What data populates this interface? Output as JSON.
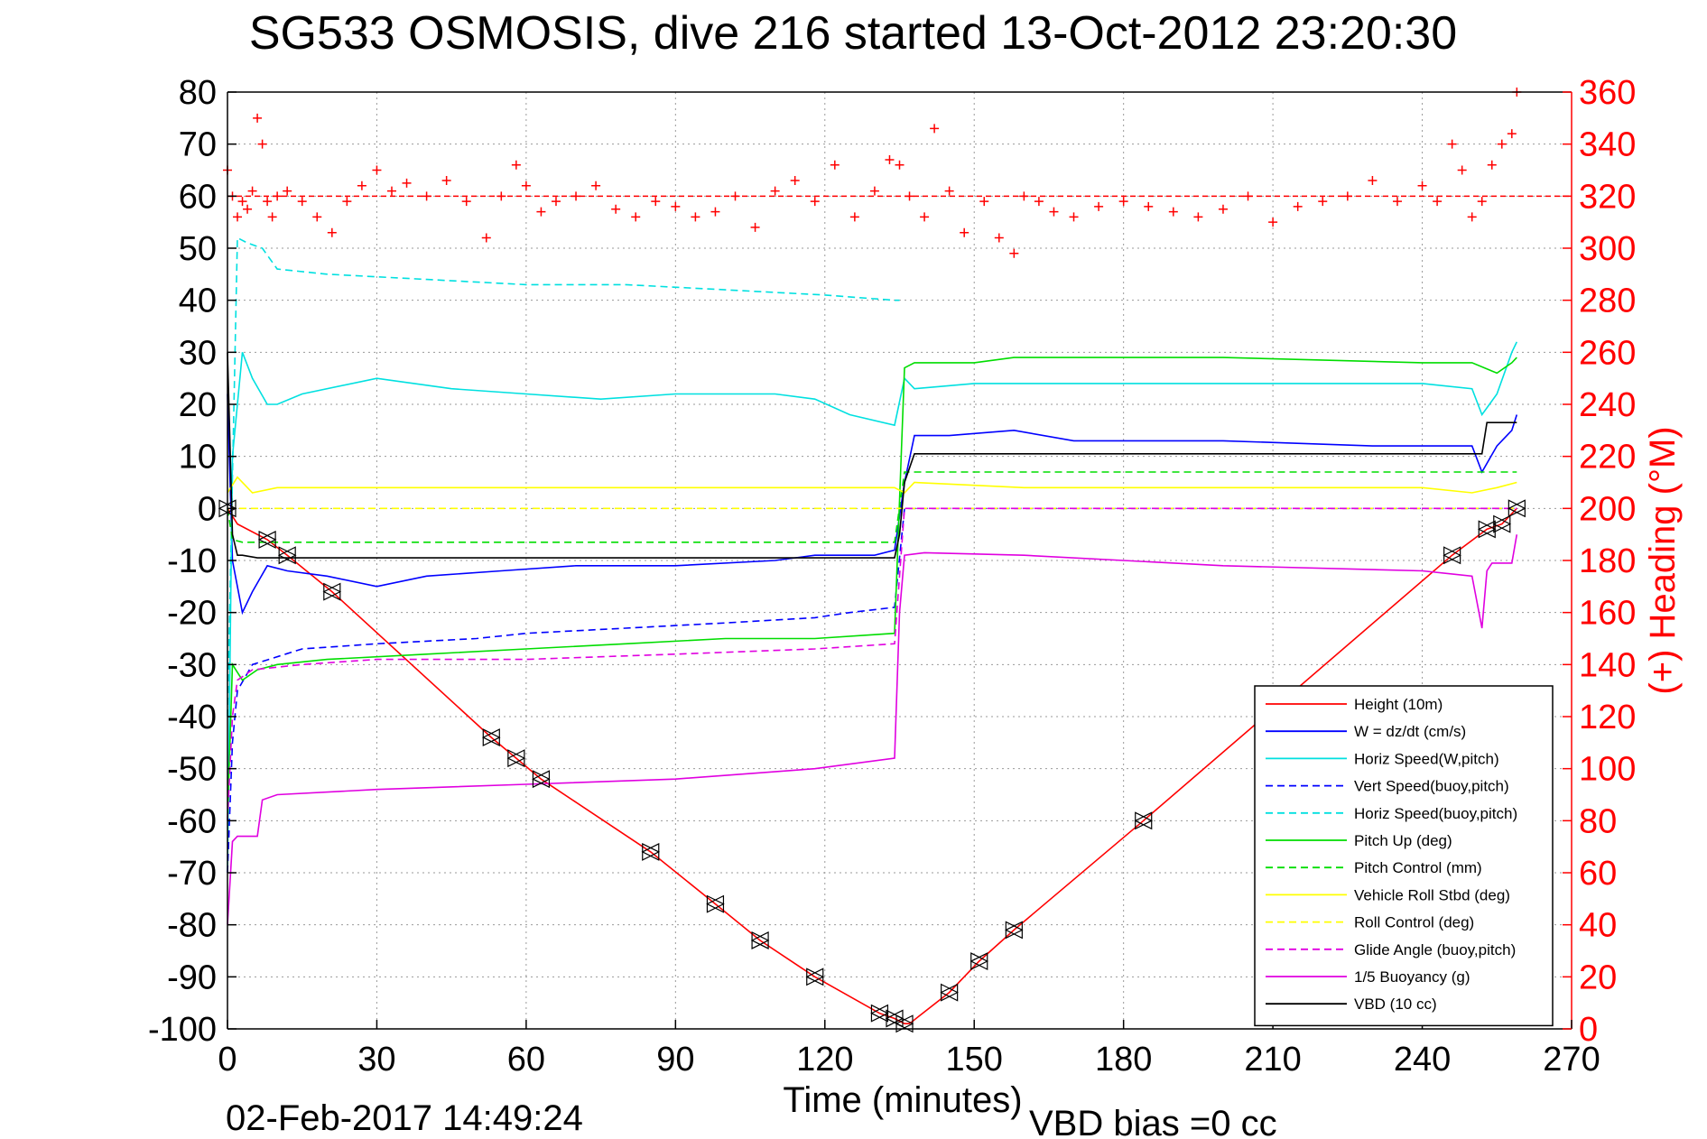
{
  "chart_data": {
    "type": "line",
    "title": "SG533 OSMOSIS, dive 216 started 13-Oct-2012 23:20:30",
    "xlabel": "Time (minutes)",
    "ylabel": "",
    "ylabel_right": "(+) Heading (°M)",
    "xlim": [
      0,
      270
    ],
    "ylim": [
      -100,
      80
    ],
    "ylim_right": [
      0,
      360
    ],
    "xticks": [
      0,
      30,
      60,
      90,
      120,
      150,
      180,
      210,
      240,
      270
    ],
    "yticks": [
      -100,
      -90,
      -80,
      -70,
      -60,
      -50,
      -40,
      -30,
      -20,
      -10,
      0,
      10,
      20,
      30,
      40,
      50,
      60,
      70,
      80
    ],
    "yticks_right": [
      0,
      20,
      40,
      60,
      80,
      100,
      120,
      140,
      160,
      180,
      200,
      220,
      240,
      260,
      280,
      300,
      320,
      340,
      360
    ],
    "grid": true,
    "legend_position": "bottom-right",
    "footer_date": "02-Feb-2017 14:49:24",
    "footer_note": "VBD bias =0 cc",
    "series": [
      {
        "name": "Height (10m)",
        "color": "#ff0000",
        "dash": "solid",
        "x": [
          0,
          2,
          8,
          12,
          21,
          53,
          58,
          63,
          85,
          98,
          107,
          118,
          131,
          134,
          136,
          137,
          145,
          151,
          158,
          184,
          246,
          253,
          256,
          259
        ],
        "y": [
          0,
          -3,
          -6,
          -9,
          -16,
          -44,
          -48,
          -52,
          -66,
          -76,
          -83,
          -90,
          -97,
          -98,
          -99,
          -99,
          -93,
          -87,
          -81,
          -60,
          -9,
          -4,
          -3,
          0
        ]
      },
      {
        "name": "W = dz/dt (cm/s)",
        "color": "#0000ff",
        "dash": "solid",
        "x": [
          0,
          1,
          3,
          5,
          8,
          12,
          20,
          30,
          40,
          55,
          70,
          90,
          110,
          118,
          130,
          134,
          136,
          138,
          145,
          158,
          170,
          200,
          230,
          246,
          250,
          252,
          255,
          258,
          259
        ],
        "y": [
          22,
          -10,
          -20,
          -16,
          -11,
          -12,
          -13,
          -15,
          -13,
          -12,
          -11,
          -11,
          -10,
          -9,
          -9,
          -8,
          5,
          14,
          14,
          15,
          13,
          13,
          12,
          12,
          12,
          7,
          12,
          15,
          18
        ]
      },
      {
        "name": "Horiz Speed(W,pitch)",
        "color": "#00e0e0",
        "dash": "solid",
        "x": [
          0,
          1,
          3,
          5,
          8,
          10,
          15,
          30,
          45,
          60,
          75,
          90,
          110,
          118,
          125,
          134,
          136,
          138,
          150,
          180,
          210,
          240,
          250,
          252,
          255,
          258,
          259
        ],
        "y": [
          -70,
          10,
          30,
          25,
          20,
          20,
          22,
          25,
          23,
          22,
          21,
          22,
          22,
          21,
          18,
          16,
          25,
          23,
          24,
          24,
          24,
          24,
          23,
          18,
          22,
          30,
          32
        ]
      },
      {
        "name": "Vert Speed(buoy,pitch)",
        "color": "#0000ff",
        "dash": "dashed",
        "x": [
          0,
          1,
          2,
          5,
          15,
          30,
          50,
          60,
          80,
          100,
          118,
          125,
          134,
          136,
          259
        ],
        "y": [
          -70,
          -45,
          -35,
          -30,
          -27,
          -26,
          -25,
          -24,
          -23,
          -22,
          -21,
          -20,
          -19,
          0,
          0
        ]
      },
      {
        "name": "Horiz Speed(buoy,pitch)",
        "color": "#00e0e0",
        "dash": "dashed",
        "x": [
          0,
          2,
          4,
          7,
          10,
          20,
          40,
          60,
          80,
          100,
          120,
          134,
          135
        ],
        "y": [
          -40,
          52,
          51,
          50,
          46,
          45,
          44,
          43,
          43,
          42,
          41,
          40,
          40
        ]
      },
      {
        "name": "Pitch Up (deg)",
        "color": "#00dd00",
        "dash": "solid",
        "x": [
          0,
          1,
          3,
          6,
          10,
          20,
          40,
          60,
          80,
          100,
          118,
          134,
          136,
          138,
          150,
          158,
          170,
          200,
          240,
          250,
          255,
          258,
          259
        ],
        "y": [
          -60,
          -30,
          -33,
          -31,
          -30,
          -29,
          -28,
          -27,
          -26,
          -25,
          -25,
          -24,
          27,
          28,
          28,
          29,
          29,
          29,
          28,
          28,
          26,
          28,
          29
        ]
      },
      {
        "name": "Pitch Control (mm)",
        "color": "#00dd00",
        "dash": "dashed",
        "x": [
          0,
          1,
          3,
          134,
          136,
          259
        ],
        "y": [
          0,
          -6,
          -6.5,
          -6.5,
          7,
          7
        ]
      },
      {
        "name": "Vehicle Roll Stbd (deg)",
        "color": "#ffff00",
        "dash": "solid",
        "x": [
          0,
          2,
          5,
          10,
          30,
          60,
          90,
          120,
          134,
          136,
          138,
          160,
          200,
          240,
          250,
          255,
          259
        ],
        "y": [
          3,
          6,
          3,
          4,
          4,
          4,
          4,
          4,
          4,
          3,
          5,
          4,
          4,
          4,
          3,
          4,
          5
        ]
      },
      {
        "name": "Roll Control (deg)",
        "color": "#ffff00",
        "dash": "dashed",
        "x": [
          0,
          259
        ],
        "y": [
          0,
          0
        ]
      },
      {
        "name": "Glide Angle (buoy,pitch)",
        "color": "#e000e0",
        "dash": "dashed",
        "x": [
          0,
          1,
          2,
          5,
          15,
          30,
          60,
          90,
          118,
          134,
          136,
          259
        ],
        "y": [
          -60,
          -40,
          -33,
          -31,
          -30,
          -29,
          -29,
          -28,
          -27,
          -26,
          0,
          0
        ]
      },
      {
        "name": "1/5 Buoyancy (g)",
        "color": "#e000e0",
        "dash": "solid",
        "x": [
          0,
          1,
          2,
          6,
          7,
          10,
          30,
          60,
          90,
          118,
          134,
          135,
          136,
          140,
          160,
          200,
          240,
          250,
          252,
          253,
          254,
          258,
          259
        ],
        "y": [
          -80,
          -64,
          -63,
          -63,
          -56,
          -55,
          -54,
          -53,
          -52,
          -50,
          -48,
          -20,
          -9,
          -8.5,
          -9,
          -11,
          -12,
          -13,
          -23,
          -12,
          -10.5,
          -10.5,
          -5
        ]
      },
      {
        "name": "VBD (10 cc)",
        "color": "#000000",
        "dash": "solid",
        "x": [
          0,
          1,
          2,
          3,
          6,
          134,
          135,
          136,
          138,
          252,
          253,
          259
        ],
        "y": [
          30,
          -5,
          -9,
          -9,
          -9.5,
          -9.5,
          -5,
          5,
          10.5,
          10.5,
          16.5,
          16.5
        ]
      }
    ],
    "heading_series": {
      "name": "(+) Heading (°M)",
      "color": "#ff0000",
      "marker": "+",
      "axis": "right",
      "x": [
        0,
        1,
        2,
        3,
        4,
        5,
        6,
        7,
        8,
        9,
        10,
        12,
        15,
        18,
        21,
        24,
        27,
        30,
        33,
        36,
        40,
        44,
        48,
        52,
        55,
        58,
        60,
        63,
        66,
        70,
        74,
        78,
        82,
        86,
        90,
        94,
        98,
        102,
        106,
        110,
        114,
        118,
        122,
        126,
        130,
        133,
        135,
        137,
        140,
        142,
        145,
        148,
        152,
        155,
        158,
        160,
        163,
        166,
        170,
        175,
        180,
        185,
        190,
        195,
        200,
        205,
        210,
        215,
        220,
        225,
        230,
        235,
        240,
        243,
        246,
        248,
        250,
        252,
        254,
        256,
        258,
        259
      ],
      "y": [
        330,
        320,
        312,
        318,
        315,
        322,
        350,
        340,
        318,
        312,
        320,
        322,
        318,
        312,
        306,
        318,
        324,
        330,
        322,
        325,
        320,
        326,
        318,
        304,
        320,
        332,
        324,
        314,
        318,
        320,
        324,
        315,
        312,
        318,
        316,
        312,
        314,
        320,
        308,
        322,
        326,
        318,
        332,
        312,
        322,
        334,
        332,
        320,
        312,
        346,
        322,
        306,
        318,
        304,
        298,
        320,
        318,
        314,
        312,
        316,
        318,
        316,
        314,
        312,
        315,
        320,
        310,
        316,
        318,
        320,
        326,
        318,
        324,
        318,
        340,
        330,
        312,
        318,
        332,
        340,
        344,
        360
      ]
    },
    "reference_line": {
      "axis": "right",
      "value": 320,
      "color": "#ff0000",
      "dash": "dashed"
    },
    "markers": {
      "x": [
        0,
        8,
        12,
        21,
        53,
        58,
        63,
        85,
        98,
        107,
        118,
        131,
        134,
        136,
        145,
        151,
        158,
        184,
        246,
        253,
        256,
        259
      ],
      "y": [
        0,
        -6,
        -9,
        -16,
        -44,
        -48,
        -52,
        -66,
        -76,
        -83,
        -90,
        -97,
        -98,
        -99,
        -93,
        -87,
        -81,
        -60,
        -9,
        -4,
        -3,
        0
      ]
    }
  }
}
